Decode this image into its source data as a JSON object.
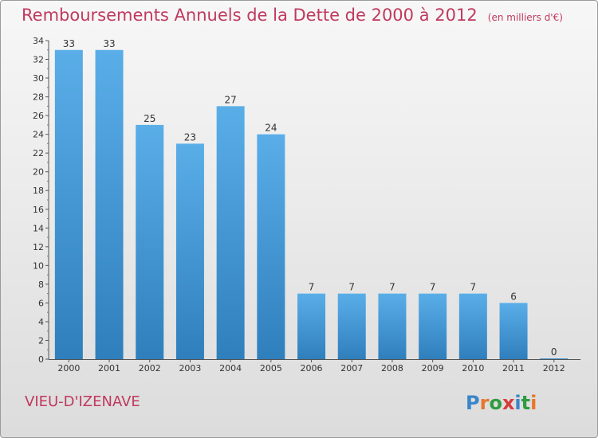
{
  "title": "Remboursements Annuels de la Dette de 2000 à 2012",
  "unit": "(en milliers d'€)",
  "town": "VIEU-D'IZENAVE",
  "logo": {
    "text": "Proxiti",
    "letters": [
      {
        "char": "P",
        "color": "#3a86c8"
      },
      {
        "char": "r",
        "color": "#e8762b"
      },
      {
        "char": "o",
        "color": "#2f9c3f"
      },
      {
        "char": "x",
        "color": "#d63b3b"
      },
      {
        "char": "i",
        "color": "#3a86c8"
      },
      {
        "char": "t",
        "color": "#2f9c3f"
      },
      {
        "char": "i",
        "color": "#e8762b"
      }
    ]
  },
  "colors": {
    "accent": "#c0395f",
    "bar_top": "#5aaee8",
    "bar_bottom": "#2f7fbd"
  },
  "chart_data": {
    "type": "bar",
    "title": "Remboursements Annuels de la Dette de 2000 à 2012",
    "categories": [
      "2000",
      "2001",
      "2002",
      "2003",
      "2004",
      "2005",
      "2006",
      "2007",
      "2008",
      "2009",
      "2010",
      "2011",
      "2012"
    ],
    "values": [
      33,
      33,
      25,
      23,
      27,
      24,
      7,
      7,
      7,
      7,
      7,
      6,
      0
    ],
    "ylim": [
      0,
      34
    ],
    "ytick_step": 2,
    "grid": false,
    "data_labels": true
  }
}
